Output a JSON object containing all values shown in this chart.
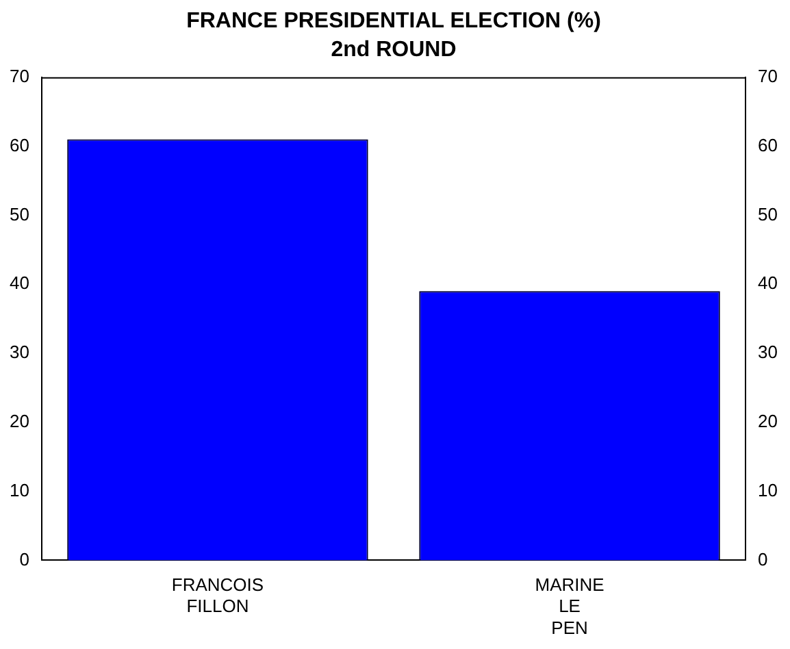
{
  "chart_data": {
    "type": "bar",
    "title": "FRANCE PRESIDENTIAL ELECTION (%)",
    "subtitle": "2nd ROUND",
    "categories": [
      "FRANCOIS FILLON",
      "MARINE LE PEN"
    ],
    "values": [
      61,
      39
    ],
    "color": "#0000ff",
    "ylim": [
      0,
      70
    ],
    "yticks": [
      0,
      10,
      20,
      30,
      40,
      50,
      60,
      70
    ],
    "y2lim": [
      0,
      70
    ],
    "y2ticks": [
      0,
      10,
      20,
      30,
      40,
      50,
      60,
      70
    ],
    "grid": false,
    "legend": false
  }
}
